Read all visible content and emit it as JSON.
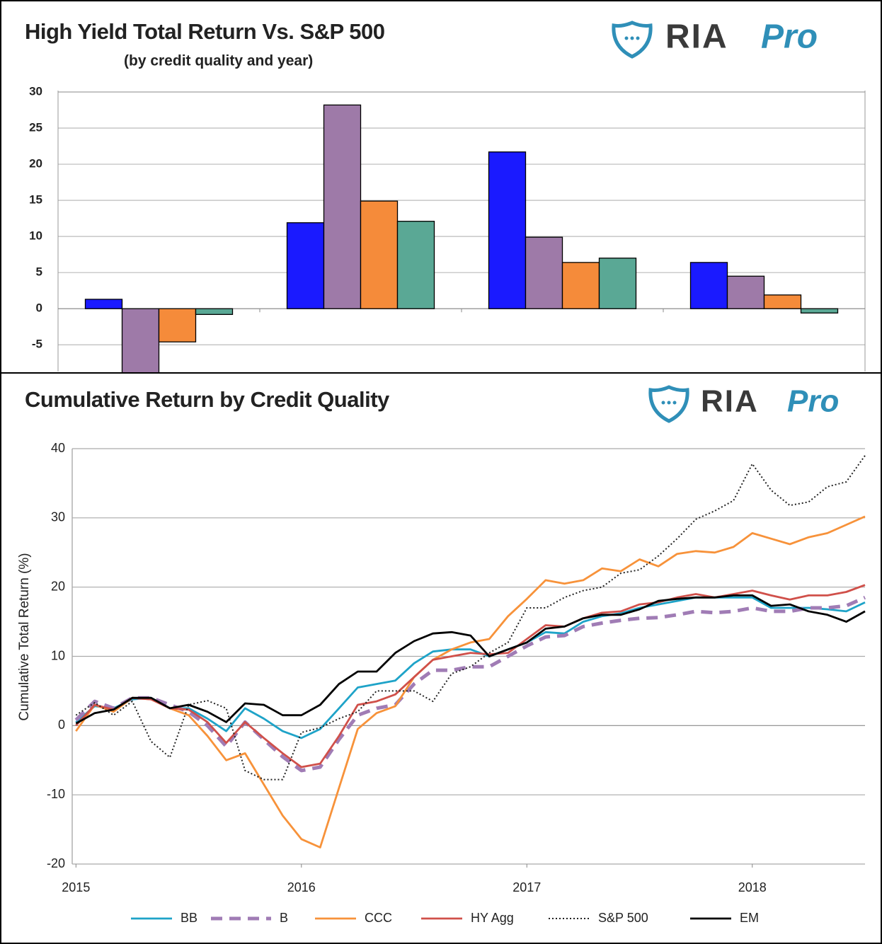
{
  "chart_data": [
    {
      "type": "bar",
      "title": "High Yield Total Return Vs. S&P 500",
      "subtitle": "(by credit quality and year)",
      "logo_text": "RIA",
      "logo_pro": "Pro",
      "categories": [
        null,
        null,
        null,
        null
      ],
      "series": [
        {
          "color": "#1a1aff",
          "values": [
            1.3,
            11.9,
            21.7,
            6.4
          ]
        },
        {
          "color": "#9e7aa8",
          "values": [
            -10,
            28.2,
            9.9,
            4.5
          ]
        },
        {
          "color": "#f58b3a",
          "values": [
            -4.6,
            14.9,
            6.4,
            1.9
          ]
        },
        {
          "color": "#5aa895",
          "values": [
            -0.8,
            12.1,
            7.0,
            -0.6
          ]
        }
      ],
      "ylim": [
        -8.7,
        30
      ],
      "yticks": [
        -5,
        0,
        5,
        10,
        15,
        20,
        25,
        30
      ],
      "grid": true
    },
    {
      "type": "line",
      "title": "Cumulative Return by Credit Quality",
      "ylabel": "Cumulative Total Return (%)",
      "logo_text": "RIA",
      "logo_pro": "Pro",
      "xlim": [
        -0.2,
        42
      ],
      "xticks": [
        {
          "value": 0,
          "label": "2015"
        },
        {
          "value": 12,
          "label": "2016"
        },
        {
          "value": 24,
          "label": "2017"
        },
        {
          "value": 36,
          "label": "2018"
        }
      ],
      "ylim": [
        -20,
        40
      ],
      "yticks": [
        -20,
        -10,
        0,
        10,
        20,
        30,
        40
      ],
      "grid": true,
      "legend": "bottom",
      "series": [
        {
          "name": "BB",
          "color": "#1ea3c8",
          "style": "solid",
          "values": [
            0.5,
            2.8,
            2.5,
            3.8,
            4.0,
            2.5,
            2.5,
            1.0,
            -0.8,
            2.5,
            1.0,
            -0.8,
            -1.8,
            -0.5,
            2.5,
            5.5,
            6.0,
            6.5,
            9.0,
            10.7,
            11.0,
            11.0,
            10.0,
            11.0,
            12.0,
            13.5,
            13.3,
            15.0,
            15.8,
            16.2,
            17.0,
            17.5,
            18.0,
            18.5,
            18.5,
            18.5,
            18.5,
            17.0,
            17.0,
            17.0,
            16.8,
            16.5,
            17.8
          ]
        },
        {
          "name": "B",
          "color": "#a07cb5",
          "style": "dashed",
          "values": [
            0.8,
            3.5,
            2.5,
            4.0,
            4.0,
            3.0,
            2.0,
            0.0,
            -3.0,
            0.5,
            -2.0,
            -4.5,
            -6.5,
            -6.0,
            -2.0,
            1.5,
            2.5,
            3.0,
            6.0,
            8.0,
            8.0,
            8.5,
            8.5,
            10.0,
            11.5,
            12.8,
            13.0,
            14.3,
            14.8,
            15.2,
            15.5,
            15.6,
            16.0,
            16.5,
            16.3,
            16.5,
            17.0,
            16.5,
            16.5,
            17.0,
            17.0,
            17.3,
            18.5
          ]
        },
        {
          "name": "CCC",
          "color": "#f7923a",
          "style": "solid",
          "values": [
            -0.8,
            3.0,
            2.0,
            4.0,
            3.8,
            2.5,
            1.5,
            -1.5,
            -5.0,
            -4.0,
            -8.5,
            -13.0,
            -16.4,
            -17.6,
            -9.0,
            -0.5,
            1.8,
            2.8,
            7.0,
            9.5,
            11.0,
            12.0,
            12.5,
            15.8,
            18.3,
            21.0,
            20.5,
            21.0,
            22.7,
            22.3,
            24.0,
            23.0,
            24.8,
            25.2,
            25.0,
            25.8,
            27.8,
            27.0,
            26.2,
            27.2,
            27.8,
            29.0,
            30.2
          ]
        },
        {
          "name": "HY Agg",
          "color": "#d0504a",
          "style": "solid",
          "values": [
            0.0,
            3.0,
            2.3,
            4.0,
            3.8,
            2.5,
            2.3,
            0.5,
            -2.5,
            0.5,
            -1.8,
            -4.0,
            -6.0,
            -5.5,
            -1.5,
            3.0,
            3.5,
            4.5,
            7.0,
            9.5,
            10.0,
            10.5,
            10.3,
            10.5,
            12.5,
            14.5,
            14.3,
            15.5,
            16.3,
            16.5,
            17.5,
            17.8,
            18.5,
            19.0,
            18.5,
            19.0,
            19.5,
            18.8,
            18.2,
            18.8,
            18.8,
            19.3,
            20.3
          ]
        },
        {
          "name": "S&P 500",
          "color": "#222222",
          "style": "dotted",
          "values": [
            1.5,
            3.3,
            1.5,
            3.5,
            -2.3,
            -4.6,
            3.0,
            3.6,
            2.5,
            -6.5,
            -7.8,
            -7.8,
            -1.0,
            -0.3,
            1.0,
            2.0,
            5.0,
            5.0,
            5.0,
            3.5,
            7.5,
            8.5,
            10.5,
            12.0,
            17.0,
            17.0,
            18.5,
            19.5,
            20.0,
            22.0,
            22.5,
            24.5,
            27.0,
            29.8,
            31.0,
            32.5,
            37.8,
            34.0,
            31.8,
            32.3,
            34.5,
            35.2,
            39.0
          ]
        },
        {
          "name": "EM",
          "color": "#000000",
          "style": "solid",
          "values": [
            0.3,
            1.8,
            2.3,
            4.0,
            4.0,
            2.5,
            3.0,
            2.0,
            0.5,
            3.2,
            3.0,
            1.5,
            1.5,
            3.0,
            6.0,
            7.8,
            7.8,
            10.5,
            12.2,
            13.3,
            13.5,
            13.0,
            10.0,
            11.0,
            12.0,
            14.0,
            14.3,
            15.5,
            16.0,
            16.0,
            16.8,
            18.0,
            18.3,
            18.5,
            18.5,
            18.8,
            18.8,
            17.3,
            17.5,
            16.5,
            16.0,
            15.0,
            16.5
          ]
        }
      ]
    }
  ]
}
